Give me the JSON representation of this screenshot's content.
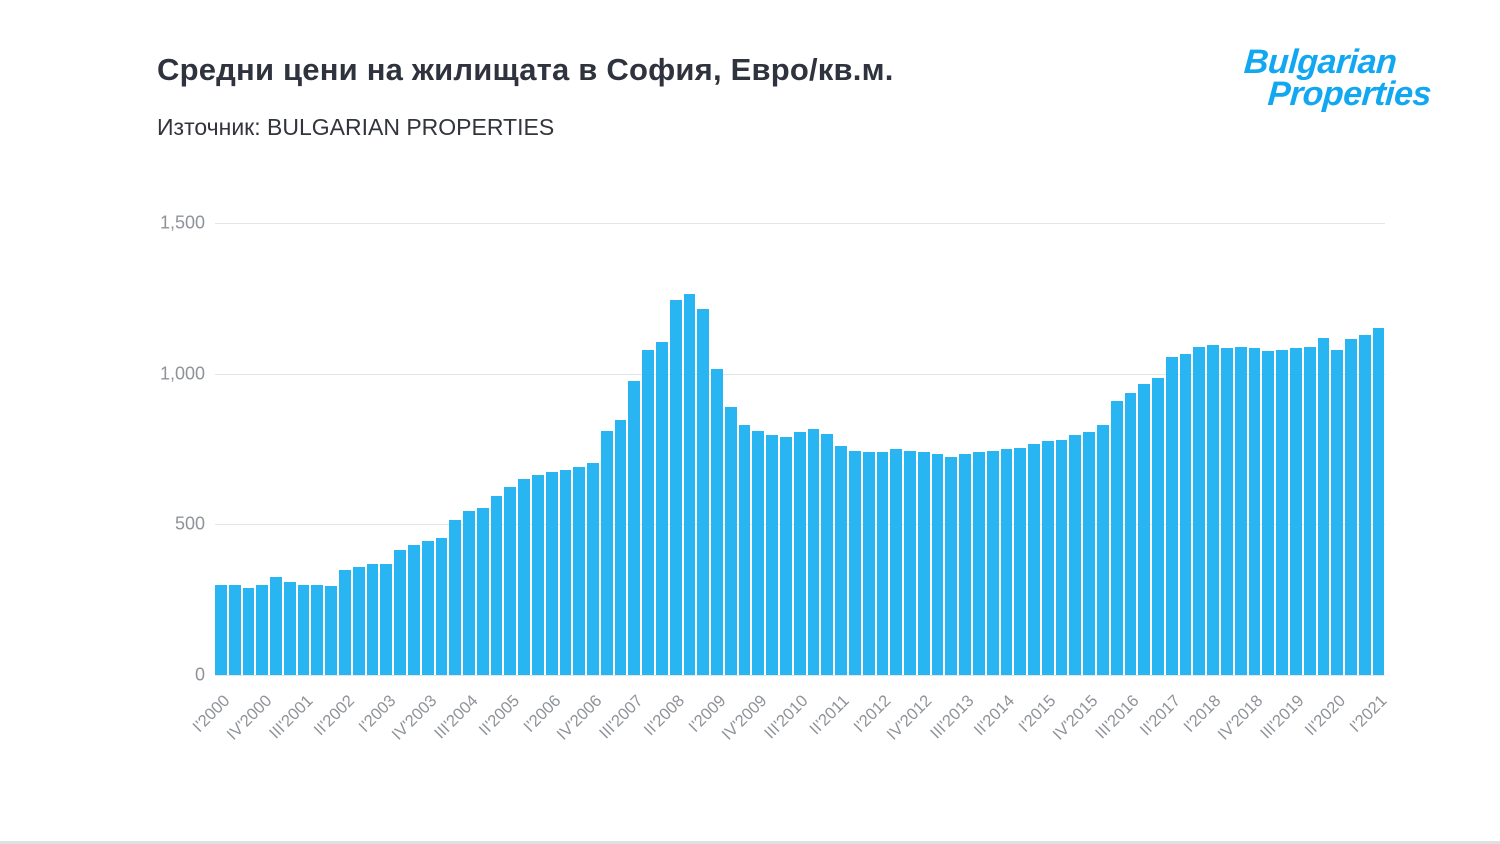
{
  "header": {
    "title": "Средни цени на жилищата в София, Евро/кв.м.",
    "source": "Източник: BULGARIAN PROPERTIES"
  },
  "logo": {
    "line1": "Bulgarian",
    "line2": "Properties",
    "color": "#12a8f1"
  },
  "colors": {
    "bar": "#29b4f2",
    "title_text": "#2f333d",
    "axis_text": "#8f9399",
    "gridline": "#e4e5e7"
  },
  "chart_data": {
    "type": "bar",
    "title": "Средни цени на жилищата в София, Евро/кв.м.",
    "xlabel": "",
    "ylabel": "Евро/кв.м.",
    "ylim": [
      0,
      1500
    ],
    "yticks": [
      0,
      500,
      1000,
      1500
    ],
    "ytick_labels": [
      "0",
      "500",
      "1,000",
      "1,500"
    ],
    "grid": true,
    "legend": "none",
    "bar_color": "#29b4f2",
    "tick_every": 3,
    "visible_tick_labels": [
      "I'2000",
      "IV'2000",
      "III'2001",
      "II'2002",
      "I'2003",
      "IV'2003",
      "III'2004",
      "II'2005",
      "I'2006",
      "IV'2006",
      "III'2007",
      "II'2008",
      "I'2009",
      "IV'2009",
      "III'2010",
      "II'2011",
      "I'2012",
      "IV'2012",
      "III'2013",
      "II'2014",
      "I'2015",
      "IV'2015",
      "III'2016",
      "II'2017",
      "I'2018",
      "IV'2018",
      "III'2019",
      "II'2020",
      "I'2021"
    ],
    "categories": [
      "I'2000",
      "II'2000",
      "III'2000",
      "IV'2000",
      "I'2001",
      "II'2001",
      "III'2001",
      "IV'2001",
      "I'2002",
      "II'2002",
      "III'2002",
      "IV'2002",
      "I'2003",
      "II'2003",
      "III'2003",
      "IV'2003",
      "I'2004",
      "II'2004",
      "III'2004",
      "IV'2004",
      "I'2005",
      "II'2005",
      "III'2005",
      "IV'2005",
      "I'2006",
      "II'2006",
      "III'2006",
      "IV'2006",
      "I'2007",
      "II'2007",
      "III'2007",
      "IV'2007",
      "I'2008",
      "II'2008",
      "III'2008",
      "IV'2008",
      "I'2009",
      "II'2009",
      "III'2009",
      "IV'2009",
      "I'2010",
      "II'2010",
      "III'2010",
      "IV'2010",
      "I'2011",
      "II'2011",
      "III'2011",
      "IV'2011",
      "I'2012",
      "II'2012",
      "III'2012",
      "IV'2012",
      "I'2013",
      "II'2013",
      "III'2013",
      "IV'2013",
      "I'2014",
      "II'2014",
      "III'2014",
      "IV'2014",
      "I'2015",
      "II'2015",
      "III'2015",
      "IV'2015",
      "I'2016",
      "II'2016",
      "III'2016",
      "IV'2016",
      "I'2017",
      "II'2017",
      "III'2017",
      "IV'2017",
      "I'2018",
      "II'2018",
      "III'2018",
      "IV'2018",
      "I'2019",
      "II'2019",
      "III'2019",
      "IV'2019",
      "I'2020",
      "II'2020",
      "III'2020",
      "IV'2020",
      "I'2021"
    ],
    "values": [
      300,
      300,
      290,
      300,
      325,
      310,
      300,
      300,
      295,
      350,
      360,
      370,
      370,
      415,
      430,
      445,
      455,
      515,
      545,
      555,
      595,
      625,
      650,
      665,
      675,
      680,
      690,
      705,
      810,
      845,
      975,
      1080,
      1105,
      1245,
      1265,
      1215,
      1015,
      890,
      830,
      810,
      795,
      790,
      805,
      815,
      800,
      760,
      745,
      740,
      740,
      750,
      745,
      740,
      735,
      725,
      735,
      740,
      745,
      750,
      755,
      765,
      775,
      780,
      795,
      805,
      830,
      910,
      935,
      965,
      985,
      1055,
      1065,
      1090,
      1095,
      1085,
      1090,
      1085,
      1075,
      1080,
      1085,
      1090,
      1120,
      1080,
      1115,
      1130,
      1150
    ]
  }
}
